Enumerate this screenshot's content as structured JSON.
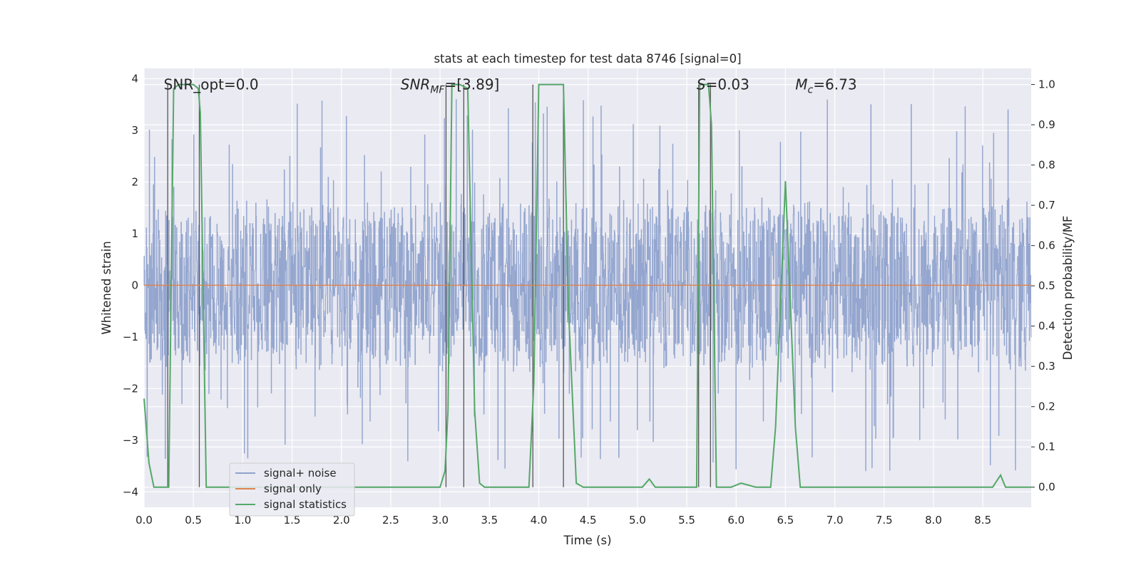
{
  "chart_data": {
    "type": "line",
    "title": "stats at each timestep for test data 8746 [signal=0]",
    "xlabel": "Time (s)",
    "ylabel": "Whitened strain",
    "ylabel_right": "Detection probability/MF",
    "xlim": [
      0.0,
      8.99
    ],
    "ylim": [
      -4.3,
      4.2
    ],
    "ylim_right": [
      -0.05,
      1.04
    ],
    "xticks": [
      "0.0",
      "0.5",
      "1.0",
      "1.5",
      "2.0",
      "2.5",
      "3.0",
      "3.5",
      "4.0",
      "4.5",
      "5.0",
      "5.5",
      "6.0",
      "6.5",
      "7.0",
      "7.5",
      "8.0",
      "8.5"
    ],
    "yticks": [
      "4",
      "3",
      "2",
      "1",
      "0",
      "−1",
      "−2",
      "−3",
      "−4"
    ],
    "yticks_right": [
      "1.0",
      "0.9",
      "0.8",
      "0.7",
      "0.6",
      "0.5",
      "0.4",
      "0.3",
      "0.2",
      "0.1",
      "0.0"
    ],
    "grid": true,
    "legend_position": "lower-left",
    "annotations": [
      {
        "text": "SNR_opt=0.0",
        "x": 0.2,
        "y": 3.85
      },
      {
        "text": "SNR_MF=[3.89]",
        "base": "SNR",
        "sub": "MF",
        "rest": "=[3.89]",
        "x": 2.6,
        "y": 3.85
      },
      {
        "text": "S=0.03",
        "base": "S",
        "sub": "",
        "rest": "=0.03",
        "x": 5.6,
        "y": 3.85
      },
      {
        "text": "M_c=6.73",
        "base": "M",
        "sub": "c",
        "rest": "=6.73",
        "x": 6.6,
        "y": 3.85
      }
    ],
    "series": [
      {
        "name": "signal+ noise",
        "color": "#8fa2cc",
        "style": "noise",
        "x_range": [
          0.0,
          8.99
        ],
        "typical_amplitude": 1.5,
        "peak_amplitude": 3.6
      },
      {
        "name": "signal only",
        "color": "#dd8452",
        "x": [
          0.0,
          8.99
        ],
        "values": [
          0.0,
          0.0
        ]
      },
      {
        "name": "signal statistics",
        "color": "#55a868",
        "axis": "right",
        "x": [
          0.0,
          0.05,
          0.1,
          0.25,
          0.3,
          0.35,
          0.5,
          0.55,
          0.57,
          0.63,
          0.7,
          3.0,
          3.05,
          3.08,
          3.12,
          3.2,
          3.28,
          3.35,
          3.4,
          3.45,
          3.9,
          3.95,
          4.0,
          4.1,
          4.25,
          4.3,
          4.38,
          4.45,
          5.05,
          5.12,
          5.18,
          5.25,
          5.6,
          5.63,
          5.66,
          5.7,
          5.72,
          5.75,
          5.8,
          5.85,
          5.95,
          6.05,
          6.2,
          6.35,
          6.4,
          6.5,
          6.6,
          6.65,
          8.6,
          8.68,
          8.73,
          8.8,
          8.99
        ],
        "values": [
          0.22,
          0.06,
          0.0,
          0.0,
          0.99,
          1.0,
          1.0,
          0.99,
          0.93,
          0.0,
          0.0,
          0.0,
          0.04,
          0.19,
          1.0,
          1.0,
          0.99,
          0.19,
          0.01,
          0.0,
          0.0,
          0.26,
          1.0,
          1.0,
          1.0,
          0.45,
          0.01,
          0.0,
          0.0,
          0.02,
          0.0,
          0.0,
          0.0,
          1.0,
          1.0,
          1.0,
          1.0,
          0.9,
          0.0,
          0.0,
          0.0,
          0.01,
          0.0,
          0.0,
          0.15,
          0.76,
          0.15,
          0.0,
          0.0,
          0.03,
          0.0,
          0.0,
          0.0
        ]
      }
    ],
    "vertical_markers": [
      0.24,
      0.56,
      3.06,
      3.24,
      3.94,
      4.25,
      5.62,
      5.74
    ]
  }
}
